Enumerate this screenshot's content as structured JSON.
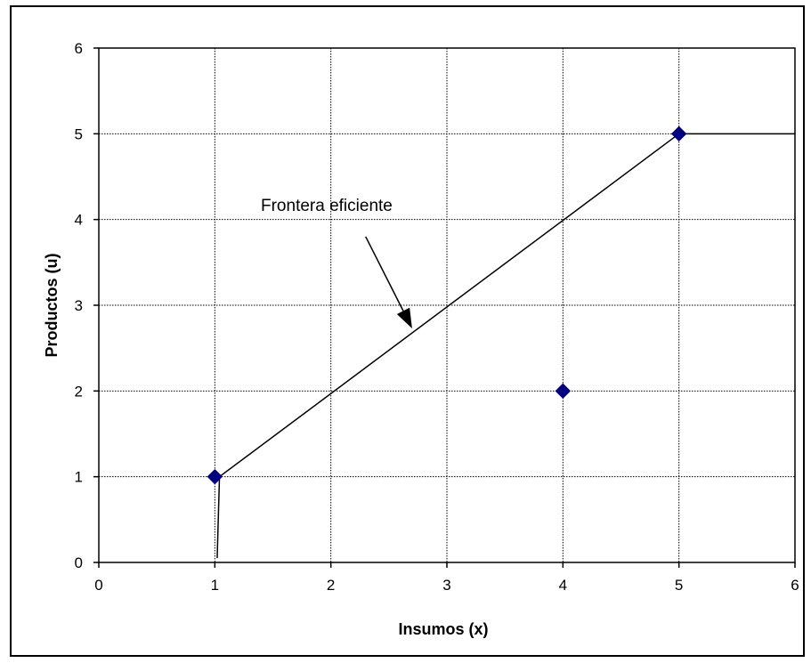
{
  "chart_data": {
    "type": "scatter",
    "title": "",
    "xlabel": "Insumos (x)",
    "ylabel": "Productos (u)",
    "xlim": [
      0,
      6
    ],
    "ylim": [
      0,
      6
    ],
    "xticks": [
      "0",
      "1",
      "2",
      "3",
      "4",
      "5",
      "6"
    ],
    "yticks": [
      "0",
      "1",
      "2",
      "3",
      "4",
      "5",
      "6"
    ],
    "grid": true,
    "series": [
      {
        "points": [
          {
            "x": 1,
            "y": 1
          },
          {
            "x": 4,
            "y": 2
          },
          {
            "x": 5,
            "y": 5
          }
        ],
        "marker": "diamond",
        "color": "#000080"
      }
    ],
    "frontier": {
      "points": [
        {
          "x": 1.02,
          "y": 0.05
        },
        {
          "x": 1.04,
          "y": 1
        },
        {
          "x": 5,
          "y": 5
        },
        {
          "x": 6,
          "y": 5
        }
      ],
      "color": "#000000"
    },
    "annotation": {
      "text": "Frontera eficiente",
      "arrow_from": {
        "x": 2.3,
        "y": 3.8
      },
      "arrow_to": {
        "x": 2.7,
        "y": 2.73
      }
    }
  }
}
